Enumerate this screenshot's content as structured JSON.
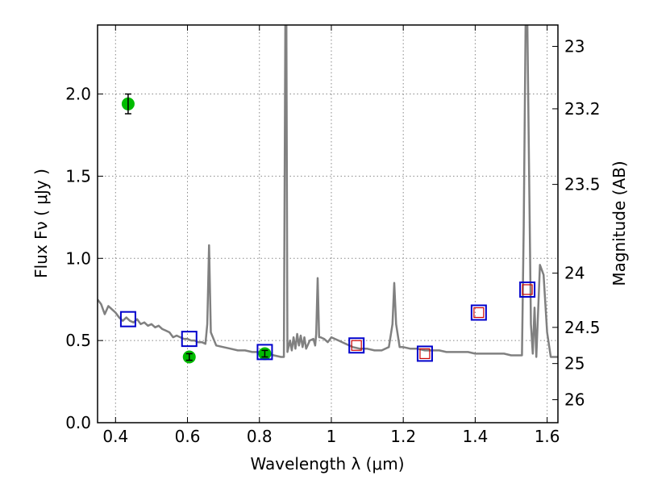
{
  "chart_data": {
    "type": "scatter",
    "xlabel": "Wavelength  λ (μm)",
    "ylabel": "Flux  Fν  ( μJy )",
    "ylabel_right": "Magnitude (AB)",
    "xlim": [
      0.35,
      1.63
    ],
    "ylim": [
      0.0,
      2.42
    ],
    "grid": true,
    "x_ticks": [
      0.4,
      0.6,
      0.8,
      1.0,
      1.2,
      1.4,
      1.6
    ],
    "x_tick_labels": [
      "0.4",
      "0.6",
      "0.8",
      "1",
      "1.2",
      "1.4",
      "1.6"
    ],
    "y_ticks": [
      0.0,
      0.5,
      1.0,
      1.5,
      2.0
    ],
    "y_tick_labels": [
      "0.0",
      "0.5",
      "1.0",
      "1.5",
      "2.0"
    ],
    "right_ticks": [
      {
        "label": "23",
        "flux": 2.29
      },
      {
        "label": "23.2",
        "flux": 1.91
      },
      {
        "label": "23.5",
        "flux": 1.45
      },
      {
        "label": "24",
        "flux": 0.91
      },
      {
        "label": "24.5",
        "flux": 0.58
      },
      {
        "label": "25",
        "flux": 0.36
      },
      {
        "label": "26",
        "flux": 0.14
      }
    ],
    "colors": {
      "model": "#808080",
      "observed": "#00bb00",
      "model_photometry": "#0000cc",
      "model_photometry_inner": "#cc0000",
      "grid": "#888888"
    },
    "series": [
      {
        "kind": "line",
        "x": [
          0.35,
          0.36,
          0.37,
          0.38,
          0.39,
          0.4,
          0.41,
          0.42,
          0.43,
          0.44,
          0.45,
          0.46,
          0.47,
          0.48,
          0.49,
          0.5,
          0.51,
          0.52,
          0.53,
          0.54,
          0.55,
          0.56,
          0.57,
          0.58,
          0.59,
          0.6,
          0.61,
          0.62,
          0.63,
          0.64,
          0.65,
          0.655,
          0.66,
          0.665,
          0.68,
          0.7,
          0.72,
          0.74,
          0.76,
          0.78,
          0.8,
          0.82,
          0.84,
          0.86,
          0.868,
          0.872,
          0.875,
          0.878,
          0.885,
          0.89,
          0.895,
          0.9,
          0.905,
          0.91,
          0.915,
          0.92,
          0.925,
          0.93,
          0.94,
          0.95,
          0.955,
          0.958,
          0.962,
          0.966,
          0.97,
          0.98,
          0.99,
          1.0,
          1.01,
          1.02,
          1.04,
          1.06,
          1.08,
          1.1,
          1.12,
          1.14,
          1.16,
          1.17,
          1.175,
          1.18,
          1.19,
          1.2,
          1.22,
          1.24,
          1.26,
          1.28,
          1.3,
          1.32,
          1.34,
          1.36,
          1.38,
          1.4,
          1.42,
          1.44,
          1.46,
          1.48,
          1.5,
          1.52,
          1.53,
          1.535,
          1.54,
          1.545,
          1.55,
          1.555,
          1.56,
          1.565,
          1.57,
          1.58,
          1.59,
          1.6,
          1.61,
          1.62,
          1.63
        ],
        "y": [
          0.75,
          0.72,
          0.66,
          0.71,
          0.69,
          0.67,
          0.64,
          0.62,
          0.64,
          0.62,
          0.61,
          0.63,
          0.6,
          0.61,
          0.59,
          0.6,
          0.58,
          0.59,
          0.57,
          0.56,
          0.55,
          0.52,
          0.53,
          0.52,
          0.51,
          0.51,
          0.5,
          0.5,
          0.49,
          0.49,
          0.48,
          0.6,
          1.08,
          0.55,
          0.47,
          0.46,
          0.45,
          0.44,
          0.44,
          0.43,
          0.43,
          0.42,
          0.41,
          0.4,
          0.4,
          2.42,
          2.42,
          0.43,
          0.5,
          0.44,
          0.52,
          0.45,
          0.54,
          0.47,
          0.53,
          0.46,
          0.52,
          0.45,
          0.5,
          0.51,
          0.47,
          0.54,
          0.88,
          0.52,
          0.52,
          0.51,
          0.49,
          0.52,
          0.51,
          0.5,
          0.48,
          0.46,
          0.45,
          0.45,
          0.44,
          0.44,
          0.46,
          0.6,
          0.85,
          0.6,
          0.46,
          0.46,
          0.45,
          0.45,
          0.44,
          0.44,
          0.44,
          0.43,
          0.43,
          0.43,
          0.43,
          0.42,
          0.42,
          0.42,
          0.42,
          0.42,
          0.41,
          0.41,
          0.41,
          1.2,
          2.42,
          2.42,
          1.5,
          0.6,
          0.42,
          0.7,
          0.4,
          0.96,
          0.9,
          0.55,
          0.4,
          0.4,
          0.4
        ]
      },
      {
        "kind": "observed",
        "x": [
          0.435,
          0.605,
          0.815
        ],
        "y": [
          1.94,
          0.4,
          0.42
        ],
        "yerr": [
          0.06,
          0.02,
          0.02
        ]
      },
      {
        "kind": "model_photometry",
        "x": [
          0.435,
          0.605,
          0.815,
          1.07,
          1.26,
          1.41,
          1.545
        ],
        "y": [
          0.63,
          0.51,
          0.43,
          0.47,
          0.42,
          0.67,
          0.81
        ]
      },
      {
        "kind": "model_photometry_inner",
        "x": [
          1.07,
          1.26,
          1.41,
          1.545
        ],
        "y": [
          0.47,
          0.42,
          0.67,
          0.81
        ]
      }
    ]
  }
}
